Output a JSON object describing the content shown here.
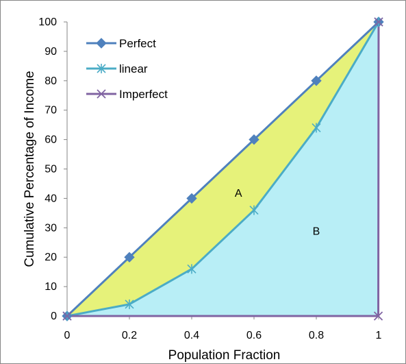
{
  "chart_data": {
    "type": "line",
    "title": "",
    "xlabel": "Population Fraction",
    "ylabel": "Cumulative Percentage of Income",
    "xlim": [
      0,
      1
    ],
    "ylim": [
      0,
      100
    ],
    "x_ticks": [
      "0",
      "0.2",
      "0.4",
      "0.6",
      "0.8",
      "1"
    ],
    "y_ticks": [
      "0",
      "10",
      "20",
      "30",
      "40",
      "50",
      "60",
      "70",
      "80",
      "90",
      "100"
    ],
    "grid": false,
    "legend_position": "top-left",
    "series": [
      {
        "name": "Perfect",
        "color": "#4F81BD",
        "marker": "diamond",
        "x": [
          0,
          0.2,
          0.4,
          0.6,
          0.8,
          1
        ],
        "y": [
          0,
          20,
          40,
          60,
          80,
          100
        ]
      },
      {
        "name": "linear",
        "color": "#4BACC6",
        "marker": "asterisk",
        "x": [
          0,
          0.2,
          0.4,
          0.6,
          0.8,
          1
        ],
        "y": [
          0,
          4,
          16,
          36,
          64,
          100
        ]
      },
      {
        "name": "Imperfect",
        "color": "#8064A2",
        "marker": "x",
        "x": [
          0,
          0.999,
          1
        ],
        "y": [
          0,
          0,
          100
        ]
      }
    ],
    "regions": [
      {
        "label": "A",
        "fill": "#E6F27A",
        "x": 0.55,
        "y": 42
      },
      {
        "label": "B",
        "fill": "#B8EEF6",
        "x": 0.8,
        "y": 29
      }
    ]
  }
}
